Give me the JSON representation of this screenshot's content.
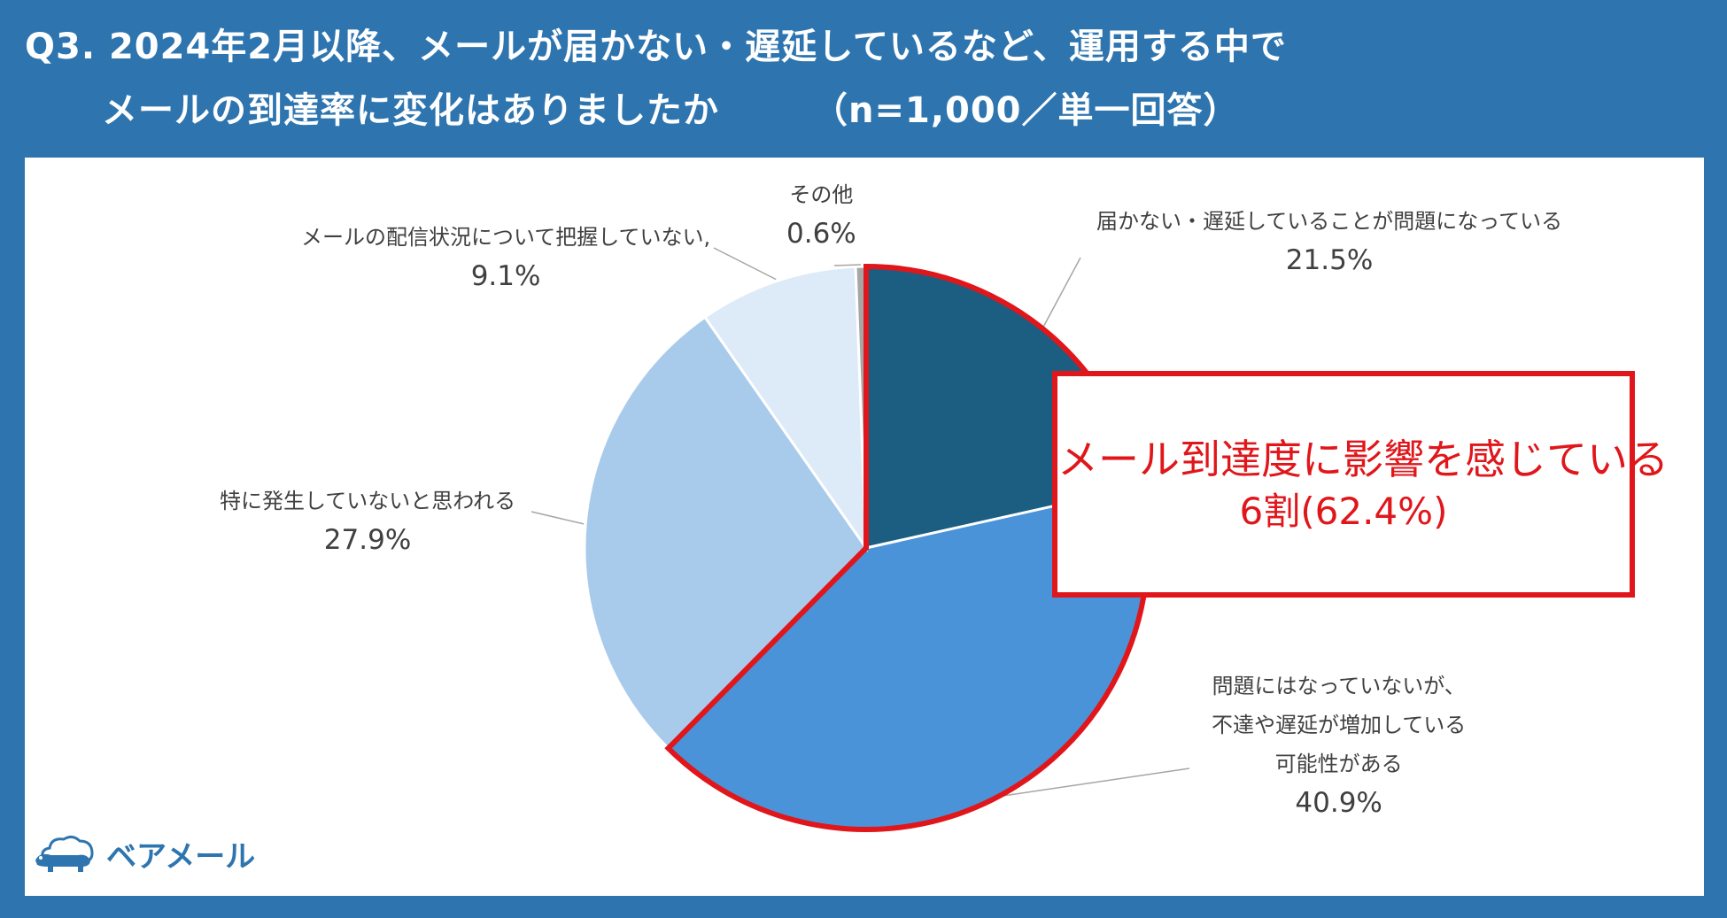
{
  "header": {
    "title_line1": "Q3. 2024年2月以降、メールが届かない・遅延しているなど、運用する中で",
    "title_line2": "メールの到達率に変化はありましたか",
    "sample_note": "（n=1,000／単一回答）"
  },
  "chart_data": {
    "type": "pie",
    "categories": [
      "届かない・遅延していることが問題になっている",
      "問題にはなっていないが、不達や遅延が増加している可能性がある",
      "特に発生していないと思われる",
      "メールの配信状況について把握していない,",
      "その他"
    ],
    "values": [
      21.5,
      40.9,
      27.9,
      9.1,
      0.6
    ],
    "value_labels": [
      "21.5%",
      "40.9%",
      "27.9%",
      "9.1%",
      "0.6%"
    ],
    "label_lines": [
      [
        "届かない・遅延していることが問題になっている"
      ],
      [
        "問題にはなっていないが、",
        "不達や遅延が増加している",
        "可能性がある"
      ],
      [
        "特に発生していないと思われる"
      ],
      [
        "メールの配信状況について把握していない,"
      ],
      [
        "その他"
      ]
    ],
    "colors": [
      "#1b5e82",
      "#4a93d8",
      "#a9cbeb",
      "#ddeaf7",
      "#a6a6a6"
    ],
    "start_angle_deg": 0,
    "direction": "clockwise",
    "highlighted_slices": [
      0,
      1
    ]
  },
  "callout": {
    "line1": "メール到達度に影響を感じている",
    "line2": "6割(62.4%)",
    "color": "#e0161b"
  },
  "brand": {
    "name": "ベアメール",
    "icon": "bear-cloud-icon",
    "color": "#2e75b0"
  }
}
